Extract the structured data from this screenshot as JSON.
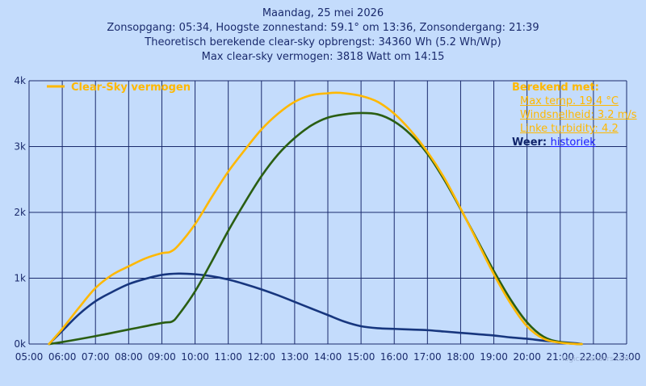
{
  "header": {
    "line1": "Maandag, 25 mei 2026",
    "line2": "Zonsopgang: 05:34, Hoogste zonnestand: 59.1° om 13:36, Zonsondergang: 21:39",
    "line3": "Theoretisch berekende clear-sky opbrengst: 34360 Wh (5.2 Wh/Wp)",
    "line4": "Max clear-sky vermogen: 3818 Watt om 14:15"
  },
  "info": {
    "heading": "Berekend met:",
    "max_temp": "Max temp. 19.4 °C",
    "wind": "Windsnelheid: 3.2 m/s",
    "linke": "Linke turbidity: 4.2",
    "weer_label": "Weer:",
    "weer_link": "historiek"
  },
  "watermark": "logicalsensors.com",
  "chart_data": {
    "type": "line",
    "x_unit": "hour of day",
    "xlim": [
      5,
      23
    ],
    "ylim": [
      0,
      4000
    ],
    "xticks": [
      "05:00",
      "06:00",
      "07:00",
      "08:00",
      "09:00",
      "10:00",
      "11:00",
      "12:00",
      "13:00",
      "14:00",
      "15:00",
      "16:00",
      "17:00",
      "18:00",
      "19:00",
      "20:00",
      "21:00",
      "22:00",
      "23:00"
    ],
    "yticks": [
      {
        "value": 0,
        "label": "0k"
      },
      {
        "value": 1000,
        "label": "1k"
      },
      {
        "value": 2000,
        "label": "2k"
      },
      {
        "value": 3000,
        "label": "3k"
      },
      {
        "value": 4000,
        "label": "4k"
      }
    ],
    "grid": true,
    "legend": "top-left",
    "series": [
      {
        "name": "Clear-Sky vermogen",
        "color": "#ffb800",
        "x": [
          5.6,
          6,
          6.5,
          7,
          7.5,
          8,
          8.5,
          9,
          9.25,
          9.5,
          10,
          10.5,
          11,
          11.5,
          12,
          12.5,
          13,
          13.5,
          14,
          14.25,
          14.5,
          15,
          15.5,
          16,
          16.5,
          17,
          17.5,
          18,
          18.5,
          19,
          19.5,
          20,
          20.5,
          21,
          21.5,
          21.65
        ],
        "y": [
          0,
          230,
          550,
          850,
          1050,
          1180,
          1300,
          1380,
          1400,
          1500,
          1820,
          2230,
          2620,
          2950,
          3260,
          3500,
          3680,
          3780,
          3810,
          3818,
          3810,
          3770,
          3680,
          3500,
          3240,
          2920,
          2530,
          2060,
          1560,
          1060,
          620,
          270,
          80,
          20,
          0,
          0
        ]
      },
      {
        "name": "",
        "color": "#2a5e12",
        "x": [
          5.6,
          6,
          7,
          8,
          9,
          9.3,
          9.5,
          10,
          10.5,
          11,
          11.5,
          12,
          12.5,
          13,
          13.5,
          14,
          14.5,
          15,
          15.5,
          16,
          16.5,
          17,
          17.5,
          18,
          18.5,
          19,
          19.5,
          20,
          20.5,
          21,
          21.5,
          21.65
        ],
        "y": [
          0,
          30,
          120,
          220,
          320,
          340,
          440,
          800,
          1250,
          1720,
          2150,
          2550,
          2880,
          3130,
          3320,
          3440,
          3490,
          3510,
          3490,
          3380,
          3180,
          2890,
          2500,
          2050,
          1580,
          1110,
          680,
          330,
          110,
          30,
          0,
          0
        ]
      },
      {
        "name": "",
        "color": "#17367e",
        "x": [
          5.6,
          6,
          6.5,
          7,
          7.5,
          8,
          8.5,
          9,
          9.5,
          10,
          10.5,
          11,
          11.5,
          12,
          12.5,
          13,
          13.5,
          14,
          14.5,
          15,
          15.5,
          16,
          16.5,
          17,
          17.5,
          18,
          18.5,
          19,
          19.5,
          20,
          20.5,
          21,
          21.5,
          21.65
        ],
        "y": [
          0,
          200,
          450,
          650,
          790,
          910,
          990,
          1050,
          1070,
          1060,
          1030,
          980,
          910,
          830,
          740,
          640,
          540,
          440,
          340,
          270,
          240,
          230,
          220,
          210,
          190,
          170,
          150,
          130,
          100,
          80,
          50,
          30,
          10,
          0
        ]
      }
    ]
  }
}
